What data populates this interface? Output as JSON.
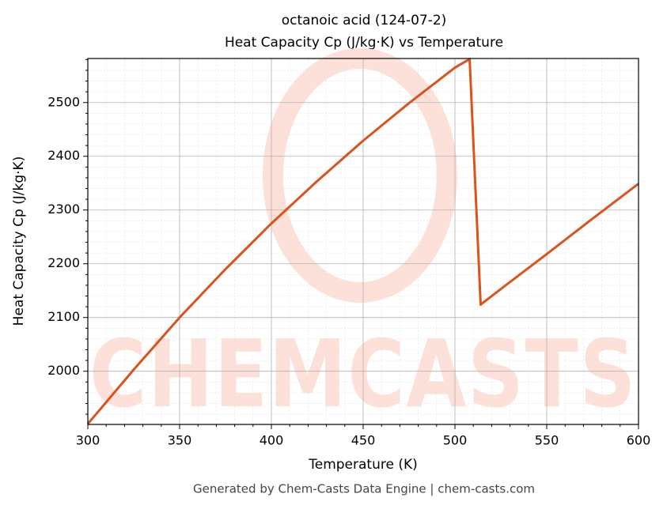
{
  "chart_data": {
    "type": "line",
    "title": "octanoic acid (124-07-2)",
    "subtitle": "Heat Capacity Cp (J/kg·K) vs Temperature",
    "x_label": "Temperature (K)",
    "y_label": "Heat Capacity Cp (J/kg·K)",
    "footer": "Generated by Chem-Casts Data Engine | chem-casts.com",
    "watermark": "CHEMCASTS",
    "x": [
      300,
      325,
      350,
      375,
      400,
      425,
      450,
      475,
      500,
      508,
      514,
      525,
      550,
      575,
      600
    ],
    "series": [
      {
        "name": "Cp",
        "color": "#d9531e",
        "values": [
          1902,
          2003,
          2100,
          2190,
          2275,
          2354,
          2429,
          2499,
          2565,
          2581,
          2124,
          2153,
          2218,
          2284,
          2349
        ]
      }
    ],
    "xlim": [
      300,
      600
    ],
    "ylim": [
      1901,
      2582
    ],
    "xticks": [
      300,
      350,
      400,
      450,
      500,
      550,
      600
    ],
    "yticks": [
      2000,
      2100,
      2200,
      2300,
      2400,
      2500
    ],
    "xminorticks": [
      310,
      320,
      330,
      340,
      360,
      370,
      380,
      390,
      410,
      420,
      430,
      440,
      460,
      470,
      480,
      490,
      510,
      520,
      530,
      540,
      560,
      570,
      580,
      590
    ],
    "yminorticks": [
      1920,
      1940,
      1960,
      1980,
      2020,
      2040,
      2060,
      2080,
      2120,
      2140,
      2160,
      2180,
      2220,
      2240,
      2260,
      2280,
      2320,
      2340,
      2360,
      2380,
      2420,
      2440,
      2460,
      2480,
      2520,
      2540,
      2560,
      2580
    ],
    "grid": true
  }
}
